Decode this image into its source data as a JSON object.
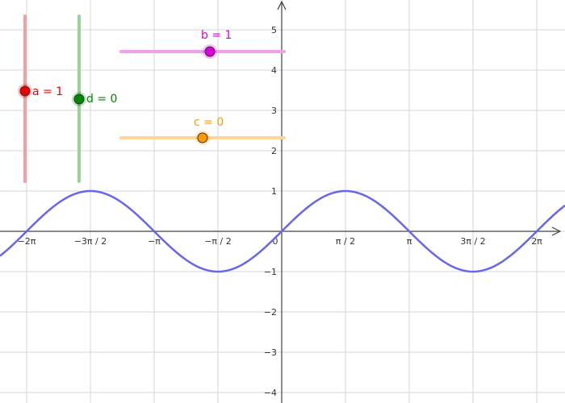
{
  "graph": {
    "x_axis": {
      "tick_labels": [
        "−2π",
        "−3π / 2",
        "−π",
        "−π / 2",
        "0",
        "π / 2",
        "π",
        "3π / 2",
        "2π"
      ],
      "tick_values": [
        -6.2832,
        -4.7124,
        -3.1416,
        -1.5708,
        0,
        1.5708,
        3.1416,
        4.7124,
        6.2832
      ]
    },
    "y_axis": {
      "tick_labels": [
        "5",
        "4",
        "3",
        "2",
        "1",
        "−1",
        "−2",
        "−3",
        "−4"
      ],
      "tick_values": [
        5,
        4,
        3,
        2,
        1,
        -1,
        -2,
        -3,
        -4
      ]
    },
    "curve": {
      "expression": "f(x) = a·sin(b·x + c) + d",
      "color": "#6666ee"
    }
  },
  "sliders": {
    "a": {
      "label": "a = 1",
      "value": 1,
      "min": -5,
      "max": 5,
      "orientation": "vertical",
      "color": "#ee0000",
      "track_color": "#f4a0a0"
    },
    "d": {
      "label": "d = 0",
      "value": 0,
      "min": -5,
      "max": 5,
      "orientation": "vertical",
      "color": "#008800",
      "track_color": "#9ad29a"
    },
    "b": {
      "label": "b = 1",
      "value": 1,
      "min": -5,
      "max": 5,
      "orientation": "horizontal",
      "color": "#dd00dd",
      "track_color": "#f0a0f0"
    },
    "c": {
      "label": "c = 0",
      "value": 0,
      "min": -5,
      "max": 5,
      "orientation": "horizontal",
      "color": "#ff9900",
      "track_color": "#ffd599"
    }
  }
}
